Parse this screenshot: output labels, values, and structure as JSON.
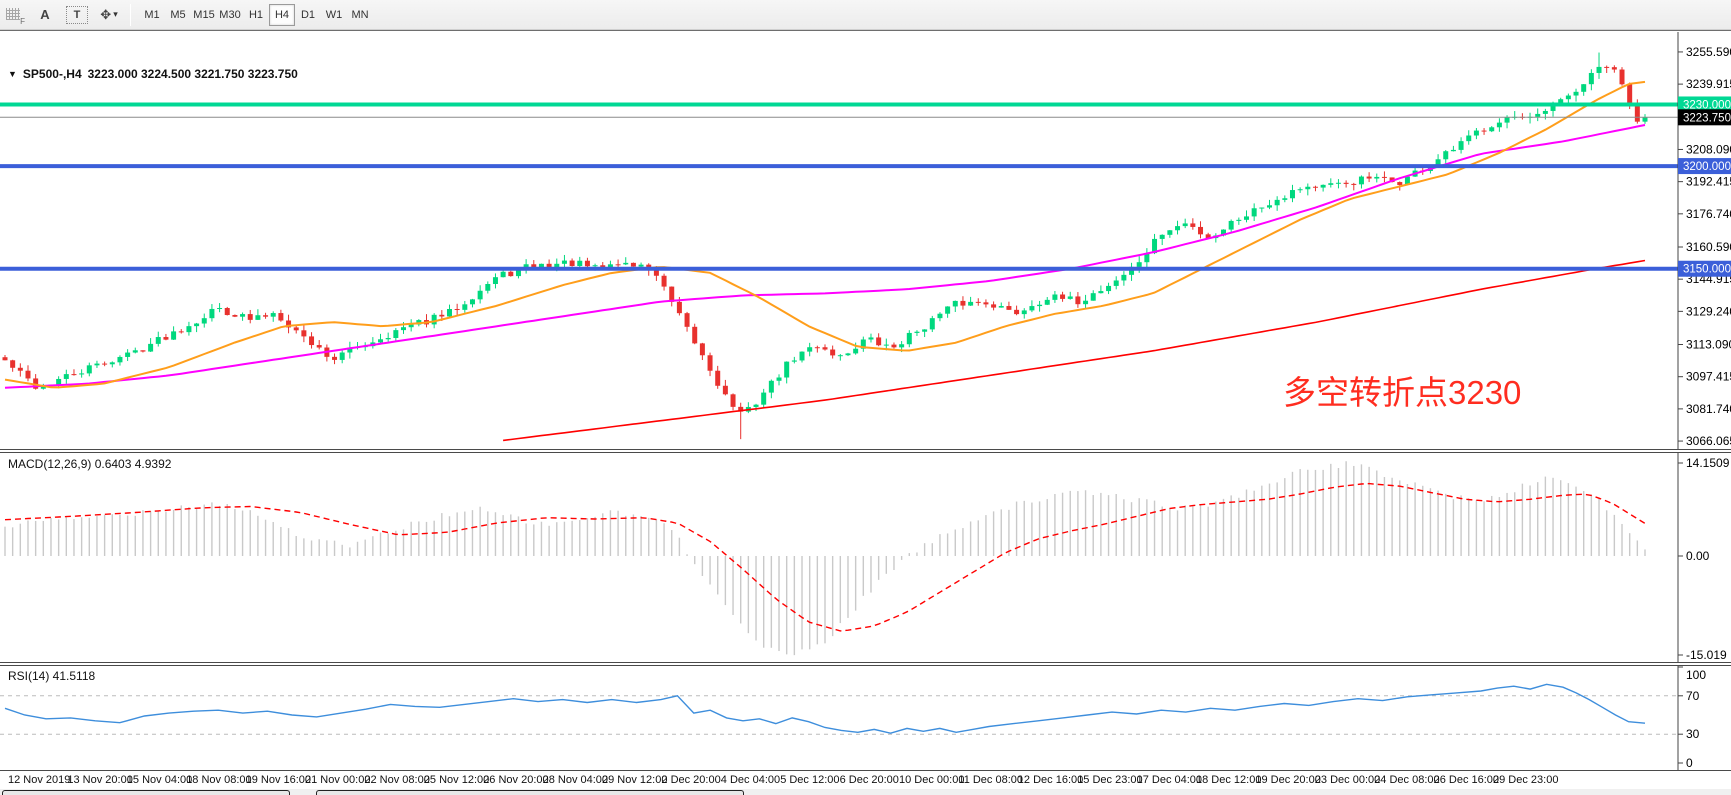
{
  "toolbar": {
    "icons": [
      {
        "name": "dock-handle-icon",
        "glyph": "F"
      },
      {
        "name": "font-tool-icon",
        "glyph": "A"
      },
      {
        "name": "text-label-tool-icon",
        "glyph": "T"
      },
      {
        "name": "cursor-tool-icon",
        "glyph": "✥"
      },
      {
        "name": "caret-down-icon",
        "glyph": "▾"
      }
    ],
    "timeframes": [
      "M1",
      "M5",
      "M15",
      "M30",
      "H1",
      "H4",
      "D1",
      "W1",
      "MN"
    ],
    "active_timeframe": "H4"
  },
  "chart": {
    "title_marker": "▼",
    "title_symbol": "SP500-,H4",
    "title_ohlc": "3223.000 3224.500 3221.750 3223.750",
    "macd_label": "MACD(12,26,9) 0.6403 4.9392",
    "rsi_label": "RSI(14) 41.5118",
    "annotation": "多空转折点3230"
  },
  "chart_data": {
    "type": "candlestick",
    "symbol": "SP500-",
    "timeframe": "H4",
    "current_ohlc": {
      "open": 3223.0,
      "high": 3224.5,
      "low": 3221.75,
      "close": 3223.75
    },
    "colors": {
      "up": "#00d87e",
      "down": "#e8312e",
      "ma_fast": "#ff9e1b",
      "ma_mid": "#ff00ff",
      "ma_slow": "#ff0000",
      "level_green": "#00d894",
      "level_blue": "#3b5fd9",
      "current_line": "#8c8c8c",
      "macd_hist": "#c9c9c9",
      "macd_signal": "#ff0000",
      "rsi_line": "#3e8edc",
      "annotation": "#ff2d20"
    },
    "price_axis": {
      "range_top": 3265.3,
      "range_bottom": 3062.2,
      "ticks": [
        "3255.590",
        "3239.915",
        "3208.090",
        "3192.415",
        "3176.740",
        "3160.590",
        "3144.915",
        "3129.240",
        "3113.090",
        "3097.415",
        "3081.740",
        "3066.065"
      ]
    },
    "levels": [
      {
        "label": "3230.000",
        "price": 3230.0,
        "badge": "#00d894",
        "line": "#00d894",
        "width": 4
      },
      {
        "label": "3223.750",
        "price": 3223.75,
        "badge": "#000000",
        "line": "#8c8c8c",
        "width": 1
      },
      {
        "label": "3200.000",
        "price": 3200.0,
        "badge": "#3b5fd9",
        "line": "#3b5fd9",
        "width": 4
      },
      {
        "label": "3150.000",
        "price": 3150.0,
        "badge": "#3b5fd9",
        "line": "#3b5fd9",
        "width": 4
      }
    ],
    "x_axis_labels": [
      "12 Nov 2019",
      "13 Nov 20:00",
      "15 Nov 04:00",
      "18 Nov 08:00",
      "19 Nov 16:00",
      "21 Nov 00:00",
      "22 Nov 08:00",
      "25 Nov 12:00",
      "26 Nov 20:00",
      "28 Nov 04:00",
      "29 Nov 12:00",
      "2 Dec 20:00",
      "4 Dec 04:00",
      "5 Dec 12:00",
      "6 Dec 20:00",
      "10 Dec 00:00",
      "11 Dec 08:00",
      "12 Dec 16:00",
      "15 Dec 23:00",
      "17 Dec 04:00",
      "18 Dec 12:00",
      "19 Dec 20:00",
      "23 Dec 00:00",
      "24 Dec 08:00",
      "26 Dec 16:00",
      "29 Dec 23:00"
    ],
    "candle_count": 215,
    "close_waypoints": [
      [
        0,
        3105
      ],
      [
        0.02,
        3092
      ],
      [
        0.04,
        3098
      ],
      [
        0.08,
        3110
      ],
      [
        0.11,
        3122
      ],
      [
        0.13,
        3131
      ],
      [
        0.15,
        3125
      ],
      [
        0.165,
        3129
      ],
      [
        0.18,
        3118
      ],
      [
        0.2,
        3106
      ],
      [
        0.215,
        3112
      ],
      [
        0.24,
        3120
      ],
      [
        0.27,
        3128
      ],
      [
        0.3,
        3146
      ],
      [
        0.32,
        3151
      ],
      [
        0.345,
        3153
      ],
      [
        0.36,
        3150
      ],
      [
        0.375,
        3153
      ],
      [
        0.395,
        3150
      ],
      [
        0.41,
        3128
      ],
      [
        0.425,
        3108
      ],
      [
        0.44,
        3087
      ],
      [
        0.45,
        3078
      ],
      [
        0.465,
        3092
      ],
      [
        0.48,
        3106
      ],
      [
        0.495,
        3113
      ],
      [
        0.51,
        3107
      ],
      [
        0.525,
        3116
      ],
      [
        0.54,
        3111
      ],
      [
        0.56,
        3122
      ],
      [
        0.58,
        3133
      ],
      [
        0.6,
        3134
      ],
      [
        0.615,
        3128
      ],
      [
        0.635,
        3136
      ],
      [
        0.655,
        3134
      ],
      [
        0.675,
        3143
      ],
      [
        0.69,
        3152
      ],
      [
        0.705,
        3167
      ],
      [
        0.72,
        3172
      ],
      [
        0.735,
        3165
      ],
      [
        0.75,
        3174
      ],
      [
        0.77,
        3182
      ],
      [
        0.79,
        3190
      ],
      [
        0.81,
        3190
      ],
      [
        0.83,
        3194
      ],
      [
        0.85,
        3192
      ],
      [
        0.865,
        3199
      ],
      [
        0.88,
        3206
      ],
      [
        0.9,
        3218
      ],
      [
        0.915,
        3224
      ],
      [
        0.93,
        3222
      ],
      [
        0.945,
        3229
      ],
      [
        0.96,
        3238
      ],
      [
        0.975,
        3250
      ],
      [
        0.983,
        3244
      ],
      [
        0.99,
        3233
      ],
      [
        0.995,
        3220
      ],
      [
        1,
        3223.75
      ]
    ],
    "ma_fast_waypoints": [
      [
        0,
        3096
      ],
      [
        0.03,
        3092
      ],
      [
        0.06,
        3094
      ],
      [
        0.1,
        3102
      ],
      [
        0.14,
        3114
      ],
      [
        0.17,
        3122
      ],
      [
        0.2,
        3124
      ],
      [
        0.23,
        3122
      ],
      [
        0.26,
        3124
      ],
      [
        0.3,
        3132
      ],
      [
        0.34,
        3142
      ],
      [
        0.37,
        3148
      ],
      [
        0.4,
        3151
      ],
      [
        0.43,
        3148
      ],
      [
        0.46,
        3136
      ],
      [
        0.49,
        3122
      ],
      [
        0.52,
        3112
      ],
      [
        0.55,
        3110
      ],
      [
        0.58,
        3114
      ],
      [
        0.61,
        3122
      ],
      [
        0.64,
        3128
      ],
      [
        0.67,
        3132
      ],
      [
        0.7,
        3138
      ],
      [
        0.73,
        3150
      ],
      [
        0.76,
        3162
      ],
      [
        0.79,
        3174
      ],
      [
        0.82,
        3184
      ],
      [
        0.85,
        3190
      ],
      [
        0.88,
        3196
      ],
      [
        0.91,
        3206
      ],
      [
        0.94,
        3218
      ],
      [
        0.97,
        3232
      ],
      [
        0.99,
        3240
      ],
      [
        1,
        3241
      ]
    ],
    "ma_mid_waypoints": [
      [
        0,
        3092
      ],
      [
        0.05,
        3094
      ],
      [
        0.1,
        3098
      ],
      [
        0.15,
        3104
      ],
      [
        0.2,
        3110
      ],
      [
        0.25,
        3116
      ],
      [
        0.3,
        3122
      ],
      [
        0.35,
        3128
      ],
      [
        0.4,
        3134
      ],
      [
        0.45,
        3137
      ],
      [
        0.5,
        3138
      ],
      [
        0.55,
        3140
      ],
      [
        0.6,
        3144
      ],
      [
        0.65,
        3150
      ],
      [
        0.7,
        3158
      ],
      [
        0.75,
        3168
      ],
      [
        0.8,
        3180
      ],
      [
        0.85,
        3194
      ],
      [
        0.9,
        3206
      ],
      [
        0.95,
        3212
      ],
      [
        1,
        3220
      ]
    ],
    "ma_slow_waypoints": [
      [
        0.3,
        3066
      ],
      [
        0.4,
        3076
      ],
      [
        0.5,
        3086
      ],
      [
        0.6,
        3098
      ],
      [
        0.7,
        3110
      ],
      [
        0.8,
        3124
      ],
      [
        0.9,
        3140
      ],
      [
        0.97,
        3150
      ],
      [
        1,
        3154
      ]
    ],
    "macd": {
      "params": "12,26,9",
      "value_main": "0.6403",
      "value_signal": "4.9392",
      "axis_labels": [
        "14.1509",
        "0.00",
        "-15.019"
      ],
      "scale_max": 14.1509,
      "scale_min": -15.019,
      "hist_waypoints": [
        [
          0,
          4.5
        ],
        [
          0.02,
          5.2
        ],
        [
          0.05,
          5.8
        ],
        [
          0.08,
          6.6
        ],
        [
          0.11,
          7.6
        ],
        [
          0.13,
          8
        ],
        [
          0.15,
          6.8
        ],
        [
          0.17,
          4.2
        ],
        [
          0.19,
          2.2
        ],
        [
          0.21,
          1.6
        ],
        [
          0.23,
          3.2
        ],
        [
          0.25,
          5
        ],
        [
          0.27,
          6.4
        ],
        [
          0.29,
          7
        ],
        [
          0.31,
          5.8
        ],
        [
          0.33,
          4.6
        ],
        [
          0.35,
          5.6
        ],
        [
          0.37,
          6.6
        ],
        [
          0.39,
          6
        ],
        [
          0.405,
          4.6
        ],
        [
          0.42,
          -1
        ],
        [
          0.435,
          -5.5
        ],
        [
          0.45,
          -11
        ],
        [
          0.465,
          -14.3
        ],
        [
          0.48,
          -15
        ],
        [
          0.5,
          -13
        ],
        [
          0.515,
          -9
        ],
        [
          0.53,
          -4.5
        ],
        [
          0.545,
          -1
        ],
        [
          0.56,
          1.5
        ],
        [
          0.575,
          3.5
        ],
        [
          0.59,
          5.5
        ],
        [
          0.605,
          7
        ],
        [
          0.62,
          8
        ],
        [
          0.64,
          9.2
        ],
        [
          0.66,
          9.6
        ],
        [
          0.68,
          9
        ],
        [
          0.7,
          8
        ],
        [
          0.72,
          7.2
        ],
        [
          0.74,
          8.2
        ],
        [
          0.76,
          10
        ],
        [
          0.78,
          12
        ],
        [
          0.8,
          13.4
        ],
        [
          0.82,
          14
        ],
        [
          0.84,
          12.4
        ],
        [
          0.86,
          11
        ],
        [
          0.88,
          9.2
        ],
        [
          0.9,
          8.2
        ],
        [
          0.92,
          10
        ],
        [
          0.94,
          12
        ],
        [
          0.955,
          11
        ],
        [
          0.97,
          9
        ],
        [
          0.98,
          6.5
        ],
        [
          0.99,
          3.5
        ],
        [
          1,
          0.64
        ]
      ],
      "signal_waypoints": [
        [
          0,
          5.5
        ],
        [
          0.04,
          6
        ],
        [
          0.08,
          6.6
        ],
        [
          0.12,
          7.3
        ],
        [
          0.15,
          7.5
        ],
        [
          0.18,
          6.6
        ],
        [
          0.21,
          4.8
        ],
        [
          0.24,
          3.2
        ],
        [
          0.27,
          3.6
        ],
        [
          0.3,
          5
        ],
        [
          0.33,
          5.8
        ],
        [
          0.36,
          5.6
        ],
        [
          0.39,
          5.8
        ],
        [
          0.41,
          5
        ],
        [
          0.43,
          2.2
        ],
        [
          0.45,
          -2
        ],
        [
          0.47,
          -6.5
        ],
        [
          0.49,
          -10
        ],
        [
          0.51,
          -11.4
        ],
        [
          0.53,
          -10.6
        ],
        [
          0.55,
          -8.5
        ],
        [
          0.57,
          -5.5
        ],
        [
          0.59,
          -2.5
        ],
        [
          0.61,
          0.5
        ],
        [
          0.63,
          2.6
        ],
        [
          0.65,
          3.8
        ],
        [
          0.67,
          4.8
        ],
        [
          0.69,
          6
        ],
        [
          0.71,
          7.2
        ],
        [
          0.73,
          7.8
        ],
        [
          0.75,
          8.2
        ],
        [
          0.77,
          8.6
        ],
        [
          0.79,
          9.4
        ],
        [
          0.81,
          10.4
        ],
        [
          0.83,
          11
        ],
        [
          0.85,
          10.6
        ],
        [
          0.87,
          9.6
        ],
        [
          0.89,
          8.6
        ],
        [
          0.91,
          8.2
        ],
        [
          0.93,
          8.6
        ],
        [
          0.95,
          9.2
        ],
        [
          0.965,
          9.4
        ],
        [
          0.98,
          8
        ],
        [
          1,
          4.94
        ]
      ]
    },
    "rsi": {
      "period": "14",
      "value": "41.5118",
      "axis_labels": [
        "100",
        "70",
        "30",
        "0"
      ],
      "level_lines": [
        70,
        30
      ],
      "waypoints": [
        [
          0,
          57
        ],
        [
          0.012,
          50
        ],
        [
          0.025,
          46
        ],
        [
          0.04,
          47
        ],
        [
          0.055,
          44
        ],
        [
          0.07,
          42
        ],
        [
          0.085,
          49
        ],
        [
          0.1,
          52
        ],
        [
          0.115,
          54
        ],
        [
          0.13,
          55
        ],
        [
          0.145,
          52
        ],
        [
          0.16,
          54
        ],
        [
          0.175,
          50
        ],
        [
          0.19,
          48
        ],
        [
          0.205,
          52
        ],
        [
          0.22,
          56
        ],
        [
          0.235,
          61
        ],
        [
          0.25,
          59
        ],
        [
          0.265,
          58
        ],
        [
          0.28,
          61
        ],
        [
          0.295,
          64
        ],
        [
          0.31,
          67
        ],
        [
          0.325,
          64
        ],
        [
          0.34,
          66
        ],
        [
          0.355,
          63
        ],
        [
          0.37,
          66
        ],
        [
          0.385,
          63
        ],
        [
          0.4,
          66
        ],
        [
          0.41,
          70
        ],
        [
          0.42,
          52
        ],
        [
          0.43,
          55
        ],
        [
          0.44,
          47
        ],
        [
          0.45,
          44
        ],
        [
          0.46,
          46
        ],
        [
          0.47,
          41
        ],
        [
          0.48,
          47
        ],
        [
          0.49,
          43
        ],
        [
          0.5,
          37
        ],
        [
          0.51,
          34
        ],
        [
          0.52,
          32
        ],
        [
          0.53,
          35
        ],
        [
          0.54,
          31
        ],
        [
          0.55,
          36
        ],
        [
          0.56,
          33
        ],
        [
          0.57,
          36
        ],
        [
          0.58,
          32
        ],
        [
          0.59,
          35
        ],
        [
          0.6,
          38
        ],
        [
          0.615,
          41
        ],
        [
          0.63,
          44
        ],
        [
          0.645,
          47
        ],
        [
          0.66,
          50
        ],
        [
          0.675,
          53
        ],
        [
          0.69,
          51
        ],
        [
          0.705,
          55
        ],
        [
          0.72,
          53
        ],
        [
          0.735,
          57
        ],
        [
          0.75,
          55
        ],
        [
          0.765,
          59
        ],
        [
          0.78,
          62
        ],
        [
          0.795,
          60
        ],
        [
          0.81,
          64
        ],
        [
          0.825,
          67
        ],
        [
          0.84,
          65
        ],
        [
          0.855,
          69
        ],
        [
          0.87,
          71
        ],
        [
          0.885,
          73
        ],
        [
          0.9,
          75
        ],
        [
          0.91,
          78
        ],
        [
          0.92,
          80
        ],
        [
          0.93,
          77
        ],
        [
          0.94,
          82
        ],
        [
          0.95,
          79
        ],
        [
          0.958,
          73
        ],
        [
          0.966,
          66
        ],
        [
          0.974,
          58
        ],
        [
          0.982,
          50
        ],
        [
          0.99,
          43
        ],
        [
          1,
          41.5
        ]
      ]
    },
    "bottom_tab_segments": [
      [
        2,
        290
      ],
      [
        316,
        744
      ]
    ]
  }
}
